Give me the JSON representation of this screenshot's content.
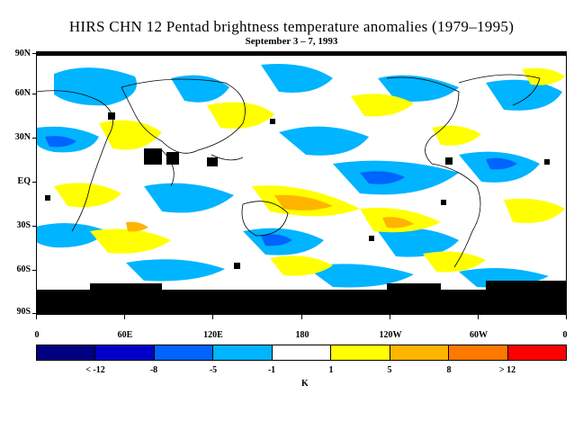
{
  "title": "HIRS CHN 12 Pentad brightness temperature anomalies (1979–1995)",
  "subtitle": "September 3 – 7, 1993",
  "lat_labels": [
    "90N",
    "60N",
    "30N",
    "EQ",
    "30S",
    "60S",
    "90S"
  ],
  "lon_labels": [
    "0",
    "60E",
    "120E",
    "180",
    "120W",
    "60W",
    "0"
  ],
  "colorbar": {
    "colors": [
      "#000080",
      "#0000c8",
      "#0064ff",
      "#00b4ff",
      "#ffffff",
      "#ffff00",
      "#ffb400",
      "#ff7800",
      "#ff0000"
    ],
    "labels": [
      "< -12",
      "-8",
      "-5",
      "-1",
      "1",
      "5",
      "8",
      "> 12"
    ],
    "unit": "K"
  },
  "map_colors": {
    "cool": "#00b4ff",
    "cool_strong": "#0064ff",
    "warm": "#ffff00",
    "warm_strong": "#ffb400",
    "no_data": "#000000",
    "coast": "#000000"
  }
}
